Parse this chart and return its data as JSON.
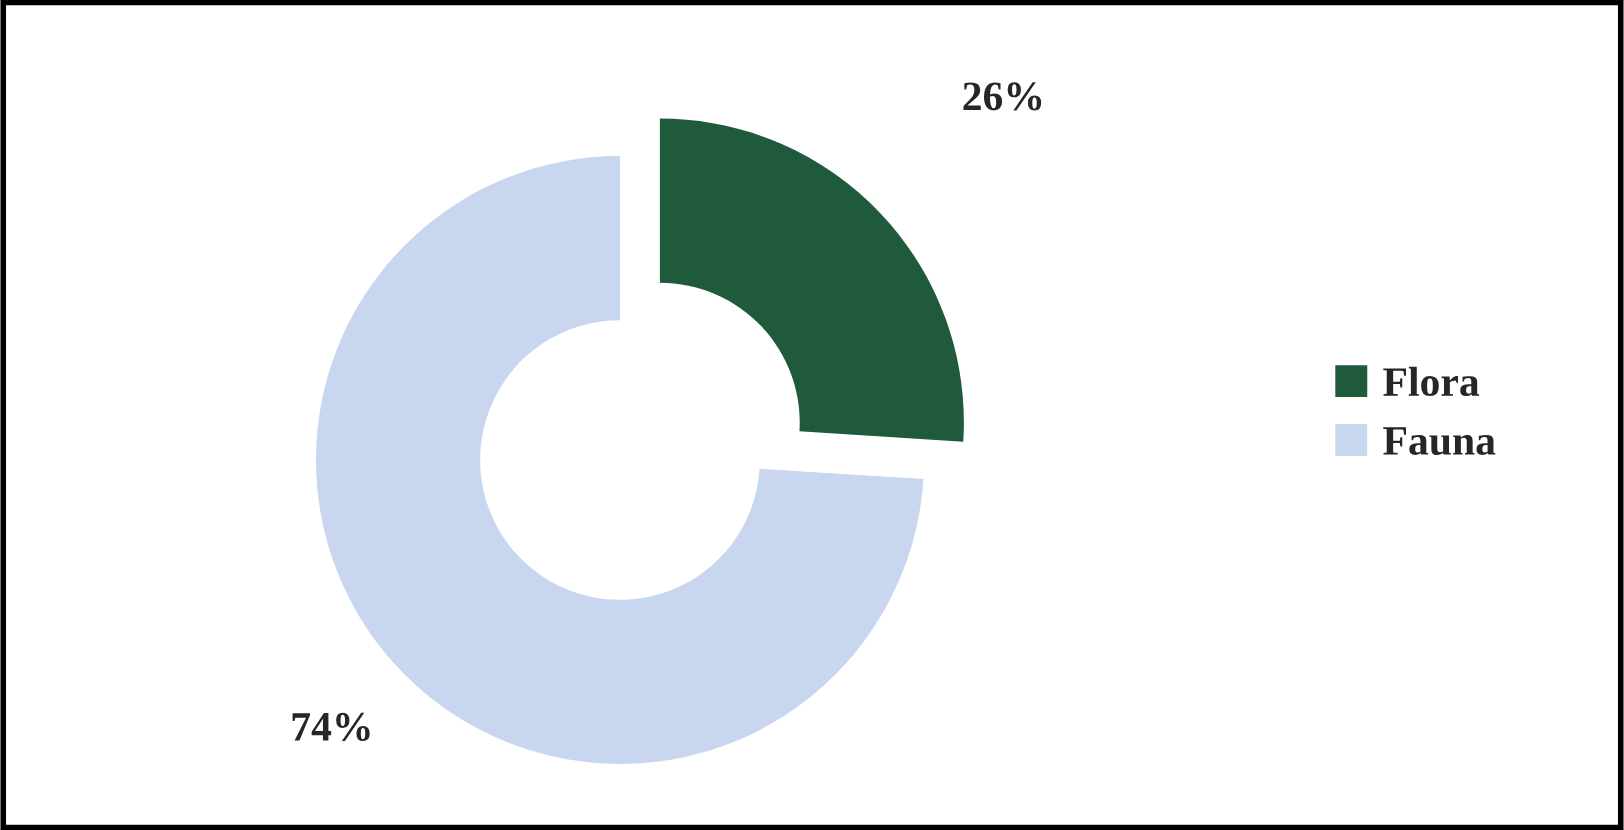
{
  "chart_data": {
    "type": "donut",
    "categories": [
      "Flora",
      "Fauna"
    ],
    "values": [
      26,
      74
    ],
    "colors": [
      "#1f5a3c",
      "#c9d6f0"
    ],
    "value_labels": [
      "26%",
      "74%"
    ],
    "legend": "right"
  }
}
